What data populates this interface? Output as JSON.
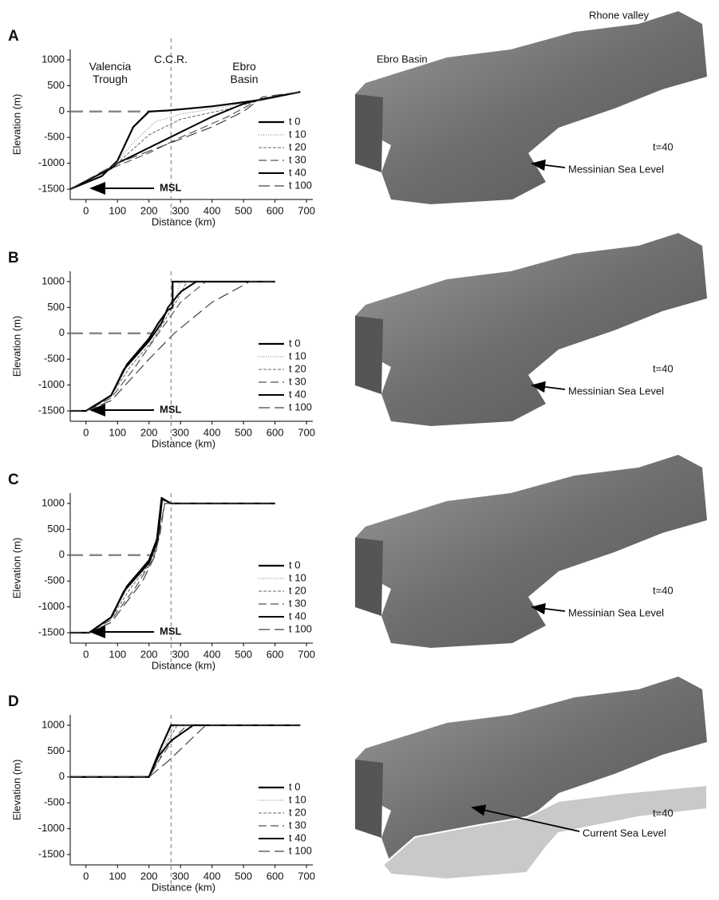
{
  "chart_data": [
    {
      "type": "line",
      "label": "A",
      "xlabel": "Distance (km)",
      "ylabel": "Elevation (m)",
      "xlim": [
        -50,
        720
      ],
      "ylim": [
        -1700,
        1200
      ],
      "xticks": [
        0,
        100,
        200,
        300,
        400,
        500,
        600,
        700
      ],
      "yticks": [
        -1500,
        -1000,
        -500,
        0,
        500,
        1000
      ],
      "vline": 270,
      "sea_level": 0,
      "sea_level_xmax": 210,
      "annotations": [
        "Valencia Trough",
        "C.C.R.",
        "Ebro Basin"
      ],
      "msl": "MSL",
      "series": [
        {
          "name": "t 0",
          "color": "#000",
          "width": 2.2,
          "dash": "",
          "x": [
            -50,
            50,
            100,
            150,
            200,
            260,
            400,
            550,
            680
          ],
          "values": [
            -1500,
            -1250,
            -950,
            -300,
            0,
            20,
            100,
            220,
            380
          ]
        },
        {
          "name": "t 10",
          "color": "#777",
          "width": 1,
          "dash": "1 2",
          "x": [
            -50,
            80,
            150,
            220,
            300,
            450,
            560,
            680
          ],
          "values": [
            -1500,
            -1100,
            -600,
            -200,
            -50,
            100,
            230,
            380
          ]
        },
        {
          "name": "t 20",
          "color": "#666",
          "width": 1,
          "dash": "4 2",
          "x": [
            -50,
            90,
            200,
            300,
            450,
            560,
            680
          ],
          "values": [
            -1500,
            -1050,
            -450,
            -150,
            50,
            230,
            380
          ]
        },
        {
          "name": "t 30",
          "color": "#555",
          "width": 1.2,
          "dash": "10 5",
          "x": [
            -50,
            80,
            200,
            300,
            450,
            540,
            680
          ],
          "values": [
            -1500,
            -1100,
            -800,
            -500,
            -100,
            200,
            380
          ]
        },
        {
          "name": "t 40",
          "color": "#000",
          "width": 2,
          "dash": "",
          "x": [
            -50,
            80,
            100,
            200,
            300,
            400,
            500,
            550,
            680
          ],
          "values": [
            -1500,
            -1100,
            -1000,
            -700,
            -400,
            -100,
            150,
            230,
            380
          ]
        },
        {
          "name": "t 100",
          "color": "#444",
          "width": 1.2,
          "dash": "14 6",
          "x": [
            -50,
            100,
            250,
            400,
            500,
            560,
            680
          ],
          "values": [
            -1500,
            -1000,
            -650,
            -300,
            0,
            280,
            380
          ]
        }
      ]
    },
    {
      "type": "line",
      "label": "B",
      "xlabel": "Distance (km)",
      "ylabel": "Elevation (m)",
      "xlim": [
        -50,
        720
      ],
      "ylim": [
        -1700,
        1200
      ],
      "xticks": [
        0,
        100,
        200,
        300,
        400,
        500,
        600,
        700
      ],
      "yticks": [
        -1500,
        -1000,
        -500,
        0,
        500,
        1000
      ],
      "vline": 270,
      "sea_level": 0,
      "sea_level_xmax": 210,
      "msl": "MSL",
      "series": [
        {
          "name": "t 0",
          "color": "#000",
          "width": 2.2,
          "dash": "",
          "x": [
            -50,
            0,
            80,
            130,
            200,
            230,
            260,
            275,
            275,
            600
          ],
          "values": [
            -1500,
            -1500,
            -1200,
            -600,
            -100,
            200,
            450,
            500,
            1000,
            1000
          ]
        },
        {
          "name": "t 10",
          "color": "#777",
          "width": 1,
          "dash": "1 2",
          "x": [
            -50,
            0,
            80,
            130,
            200,
            240,
            280,
            300,
            600
          ],
          "values": [
            -1500,
            -1500,
            -1200,
            -650,
            -150,
            250,
            600,
            1000,
            1000
          ]
        },
        {
          "name": "t 20",
          "color": "#666",
          "width": 1,
          "dash": "4 2",
          "x": [
            -50,
            0,
            80,
            140,
            210,
            250,
            290,
            320,
            600
          ],
          "values": [
            -1500,
            -1500,
            -1200,
            -650,
            -150,
            250,
            650,
            1000,
            1000
          ]
        },
        {
          "name": "t 30",
          "color": "#555",
          "width": 1.2,
          "dash": "10 5",
          "x": [
            -50,
            0,
            80,
            150,
            230,
            300,
            380,
            600
          ],
          "values": [
            -1500,
            -1500,
            -1250,
            -700,
            0,
            600,
            1000,
            1000
          ]
        },
        {
          "name": "t 40",
          "color": "#000",
          "width": 2,
          "dash": "",
          "x": [
            -50,
            0,
            80,
            120,
            200,
            240,
            260,
            300,
            350,
            600
          ],
          "values": [
            -1500,
            -1500,
            -1200,
            -700,
            -150,
            200,
            500,
            800,
            1000,
            1000
          ]
        },
        {
          "name": "t 100",
          "color": "#444",
          "width": 1.2,
          "dash": "14 6",
          "x": [
            -50,
            0,
            80,
            200,
            280,
            400,
            520,
            600
          ],
          "values": [
            -1500,
            -1500,
            -1300,
            -500,
            0,
            600,
            1000,
            1000
          ]
        }
      ]
    },
    {
      "type": "line",
      "label": "C",
      "xlabel": "Distance (km)",
      "ylabel": "Elevation (m)",
      "xlim": [
        -50,
        720
      ],
      "ylim": [
        -1700,
        1200
      ],
      "xticks": [
        0,
        100,
        200,
        300,
        400,
        500,
        600,
        700
      ],
      "yticks": [
        -1500,
        -1000,
        -500,
        0,
        500,
        1000
      ],
      "vline": 270,
      "sea_level": 0,
      "sea_level_xmax": 210,
      "msl": "MSL",
      "series": [
        {
          "name": "t 0",
          "color": "#000",
          "width": 2.2,
          "dash": "",
          "x": [
            -50,
            10,
            80,
            130,
            200,
            225,
            240,
            270,
            600
          ],
          "values": [
            -1500,
            -1500,
            -1200,
            -600,
            -100,
            300,
            1100,
            1000,
            1000
          ]
        },
        {
          "name": "t 10",
          "color": "#777",
          "width": 1,
          "dash": "1 2",
          "x": [
            -50,
            10,
            80,
            130,
            200,
            225,
            240,
            270,
            600
          ],
          "values": [
            -1500,
            -1500,
            -1200,
            -650,
            -150,
            250,
            1080,
            1000,
            1000
          ]
        },
        {
          "name": "t 20",
          "color": "#666",
          "width": 1,
          "dash": "4 2",
          "x": [
            -50,
            10,
            80,
            140,
            205,
            228,
            242,
            270,
            600
          ],
          "values": [
            -1500,
            -1500,
            -1220,
            -650,
            -150,
            250,
            1060,
            1000,
            1000
          ]
        },
        {
          "name": "t 30",
          "color": "#555",
          "width": 1.2,
          "dash": "10 5",
          "x": [
            -50,
            10,
            80,
            160,
            215,
            235,
            250,
            600
          ],
          "values": [
            -1500,
            -1500,
            -1250,
            -600,
            -50,
            400,
            1000,
            1000
          ]
        },
        {
          "name": "t 40",
          "color": "#000",
          "width": 2,
          "dash": "",
          "x": [
            -50,
            10,
            80,
            120,
            200,
            228,
            242,
            270,
            600
          ],
          "values": [
            -1500,
            -1500,
            -1200,
            -700,
            -150,
            300,
            1100,
            1000,
            1000
          ]
        },
        {
          "name": "t 100",
          "color": "#444",
          "width": 1.2,
          "dash": "14 6",
          "x": [
            -50,
            10,
            80,
            180,
            220,
            250,
            600
          ],
          "values": [
            -1500,
            -1500,
            -1300,
            -500,
            0,
            1000,
            1000
          ]
        }
      ]
    },
    {
      "type": "line",
      "label": "D",
      "xlabel": "Distance (km)",
      "ylabel": "Elevation (m)",
      "xlim": [
        -50,
        720
      ],
      "ylim": [
        -1700,
        1200
      ],
      "xticks": [
        0,
        100,
        200,
        300,
        400,
        500,
        600,
        700
      ],
      "yticks": [
        -1500,
        -1000,
        -500,
        0,
        500,
        1000
      ],
      "vline": 270,
      "series": [
        {
          "name": "t 0",
          "color": "#000",
          "width": 2.2,
          "dash": "",
          "x": [
            -50,
            200,
            220,
            240,
            270,
            680
          ],
          "values": [
            0,
            0,
            300,
            600,
            1000,
            1000
          ]
        },
        {
          "name": "t 10",
          "color": "#777",
          "width": 1,
          "dash": "1 2",
          "x": [
            -50,
            200,
            225,
            250,
            280,
            680
          ],
          "values": [
            0,
            0,
            300,
            650,
            1000,
            1000
          ]
        },
        {
          "name": "t 20",
          "color": "#666",
          "width": 1,
          "dash": "4 2",
          "x": [
            -50,
            200,
            230,
            260,
            290,
            680
          ],
          "values": [
            0,
            0,
            300,
            700,
            1000,
            1000
          ]
        },
        {
          "name": "t 30",
          "color": "#555",
          "width": 1.2,
          "dash": "10 5",
          "x": [
            -50,
            200,
            240,
            280,
            320,
            680
          ],
          "values": [
            0,
            0,
            400,
            750,
            1000,
            1000
          ]
        },
        {
          "name": "t 40",
          "color": "#000",
          "width": 2,
          "dash": "",
          "x": [
            -50,
            200,
            230,
            270,
            340,
            680
          ],
          "values": [
            0,
            0,
            400,
            700,
            1000,
            1000
          ]
        },
        {
          "name": "t 100",
          "color": "#444",
          "width": 1.2,
          "dash": "14 6",
          "x": [
            -50,
            200,
            260,
            380,
            680
          ],
          "values": [
            0,
            0,
            300,
            1000,
            1000
          ]
        }
      ]
    }
  ],
  "images": [
    {
      "title_left": "Ebro Basin",
      "title_right": "Rhone valley",
      "time": "t=40",
      "sea_level": "Messinian Sea Level"
    },
    {
      "time": "t=40",
      "sea_level": "Messinian Sea Level"
    },
    {
      "time": "t=40",
      "sea_level": "Messinian Sea Level"
    },
    {
      "time": "t=40",
      "sea_level": "Current Sea Level"
    }
  ]
}
